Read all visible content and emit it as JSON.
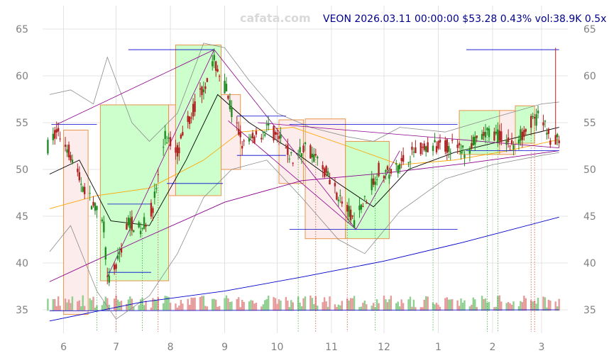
{
  "watermark": "cafata.com",
  "header": "VEON 2026.03.11 00:00:00 $53.28 0.43% vol:38.9K 0.5x",
  "chart_data": {
    "type": "candlestick",
    "title": "VEON 2026.03.11 00:00:00 $53.28 0.43% vol:38.9K 0.5x",
    "symbol": "VEON",
    "last_date": "2026-03-11",
    "last_price": 53.28,
    "change_pct": 0.43,
    "volume": "38.9K",
    "volume_ratio": "0.5x",
    "y_ticks": [
      35,
      40,
      45,
      50,
      55,
      60,
      65
    ],
    "ylim": [
      32.5,
      67.5
    ],
    "x_ticks": [
      {
        "label": "6",
        "x": "2025-06-01"
      },
      {
        "label": "7",
        "x": "2025-07-01"
      },
      {
        "label": "8",
        "x": "2025-08-01"
      },
      {
        "label": "9",
        "x": "2025-09-01"
      },
      {
        "label": "10",
        "x": "2025-10-01"
      },
      {
        "label": "11",
        "x": "2025-11-01"
      },
      {
        "label": "12",
        "x": "2025-12-01"
      },
      {
        "label": "1",
        "x": "2026-01-01"
      },
      {
        "label": "2",
        "x": "2026-02-01"
      },
      {
        "label": "3",
        "x": "2026-03-01"
      }
    ],
    "xlim": [
      "2025-05-20",
      "2026-03-16"
    ],
    "grid": true,
    "price_path": [
      [
        "2025-05-23",
        52.5
      ],
      [
        "2025-05-28",
        54.0
      ],
      [
        "2025-06-03",
        52.5
      ],
      [
        "2025-06-10",
        49.0
      ],
      [
        "2025-06-17",
        46.5
      ],
      [
        "2025-06-24",
        44.0
      ],
      [
        "2025-06-26",
        38.0
      ],
      [
        "2025-07-01",
        39.5
      ],
      [
        "2025-07-08",
        44.5
      ],
      [
        "2025-07-15",
        43.5
      ],
      [
        "2025-07-22",
        46.0
      ],
      [
        "2025-07-29",
        53.5
      ],
      [
        "2025-08-05",
        52.0
      ],
      [
        "2025-08-12",
        55.5
      ],
      [
        "2025-08-19",
        58.5
      ],
      [
        "2025-08-26",
        61.5
      ],
      [
        "2025-09-02",
        58.5
      ],
      [
        "2025-09-05",
        56.0
      ],
      [
        "2025-09-12",
        52.5
      ],
      [
        "2025-09-19",
        53.5
      ],
      [
        "2025-09-26",
        54.5
      ],
      [
        "2025-10-03",
        53.0
      ],
      [
        "2025-10-10",
        51.0
      ],
      [
        "2025-10-17",
        52.5
      ],
      [
        "2025-10-24",
        51.0
      ],
      [
        "2025-10-31",
        49.0
      ],
      [
        "2025-11-07",
        46.5
      ],
      [
        "2025-11-14",
        44.5
      ],
      [
        "2025-11-21",
        47.0
      ],
      [
        "2025-11-28",
        50.0
      ],
      [
        "2025-12-05",
        49.5
      ],
      [
        "2025-12-12",
        51.0
      ],
      [
        "2025-12-19",
        52.0
      ],
      [
        "2026-01-02",
        52.5
      ],
      [
        "2026-01-09",
        52.5
      ],
      [
        "2026-01-16",
        52.0
      ],
      [
        "2026-01-23",
        53.0
      ],
      [
        "2026-01-30",
        54.0
      ],
      [
        "2026-02-06",
        53.5
      ],
      [
        "2026-02-13",
        52.5
      ],
      [
        "2026-02-20",
        54.5
      ],
      [
        "2026-02-27",
        55.5
      ],
      [
        "2026-03-04",
        54.5
      ],
      [
        "2026-03-06",
        53.0
      ],
      [
        "2026-03-11",
        53.28
      ]
    ],
    "spike": {
      "x": "2026-03-09",
      "high": 63.0,
      "low": 53.0
    },
    "zones": [
      {
        "x0": "2025-06-01",
        "x1": "2025-06-15",
        "y0": 34.5,
        "y1": 54.2,
        "color": "red"
      },
      {
        "x0": "2025-06-22",
        "x1": "2025-07-31",
        "y0": 38.1,
        "y1": 56.9,
        "color": "green"
      },
      {
        "x0": "2025-07-31",
        "x1": "2025-08-04",
        "y0": 47.2,
        "y1": 56.9,
        "color": "red"
      },
      {
        "x0": "2025-08-04",
        "x1": "2025-08-30",
        "y0": 47.2,
        "y1": 63.3,
        "color": "green"
      },
      {
        "x0": "2025-08-30",
        "x1": "2025-09-10",
        "y0": 50.0,
        "y1": 58.0,
        "color": "red"
      },
      {
        "x0": "2025-10-02",
        "x1": "2025-10-16",
        "y0": 48.5,
        "y1": 55.3,
        "color": "red"
      },
      {
        "x0": "2025-10-17",
        "x1": "2025-11-09",
        "y0": 42.6,
        "y1": 55.4,
        "color": "red"
      },
      {
        "x0": "2025-11-09",
        "x1": "2025-12-04",
        "y0": 42.6,
        "y1": 53.0,
        "color": "green"
      },
      {
        "x0": "2026-01-13",
        "x1": "2026-02-05",
        "y0": 51.6,
        "y1": 56.3,
        "color": "green"
      },
      {
        "x0": "2026-02-05",
        "x1": "2026-02-14",
        "y0": 51.6,
        "y1": 56.3,
        "color": "red"
      },
      {
        "x0": "2026-02-14",
        "x1": "2026-02-25",
        "y0": 52.8,
        "y1": 56.8,
        "color": "green"
      }
    ],
    "levels": [
      {
        "x0": "2025-05-25",
        "x1": "2025-06-20",
        "y": 54.8
      },
      {
        "x0": "2025-07-08",
        "x1": "2025-08-26",
        "y": 62.8
      },
      {
        "x0": "2025-06-26",
        "x1": "2025-07-21",
        "y": 39.0
      },
      {
        "x0": "2025-06-26",
        "x1": "2025-07-21",
        "y": 46.3
      },
      {
        "x0": "2025-07-30",
        "x1": "2025-08-31",
        "y": 48.5
      },
      {
        "x0": "2025-09-08",
        "x1": "2025-10-06",
        "y": 55.7
      },
      {
        "x0": "2025-09-08",
        "x1": "2025-10-06",
        "y": 51.5
      },
      {
        "x0": "2025-10-08",
        "x1": "2026-01-12",
        "y": 54.8
      },
      {
        "x0": "2025-10-08",
        "x1": "2026-01-12",
        "y": 43.6
      },
      {
        "x0": "2026-01-17",
        "x1": "2026-03-11",
        "y": 62.8
      },
      {
        "x0": "2026-01-17",
        "x1": "2026-03-11",
        "y": 52.0
      }
    ],
    "trend_lines": [
      [
        [
          "2025-05-28",
          54.8
        ],
        [
          "2025-08-26",
          62.8
        ]
      ],
      [
        [
          "2025-06-26",
          38.5
        ],
        [
          "2025-08-26",
          62.8
        ]
      ],
      [
        [
          "2025-08-26",
          62.8
        ],
        [
          "2025-11-15",
          43.6
        ]
      ],
      [
        [
          "2025-09-03",
          55.2
        ],
        [
          "2025-11-15",
          43.6
        ]
      ],
      [
        [
          "2025-11-15",
          43.6
        ],
        [
          "2025-12-10",
          52.0
        ]
      ],
      [
        [
          "2025-09-20",
          55.0
        ],
        [
          "2026-03-11",
          52.3
        ]
      ]
    ],
    "ma_lines": [
      {
        "color": "#8b008b",
        "points": [
          [
            "2025-05-24",
            38.0
          ],
          [
            "2025-07-15",
            42.5
          ],
          [
            "2025-09-01",
            46.5
          ],
          [
            "2025-10-15",
            48.8
          ],
          [
            "2025-12-01",
            49.6
          ],
          [
            "2026-01-15",
            50.6
          ],
          [
            "2026-03-11",
            52.0
          ]
        ]
      },
      {
        "color": "#0000cd",
        "points": [
          [
            "2025-05-24",
            33.8
          ],
          [
            "2025-07-15",
            35.8
          ],
          [
            "2025-09-01",
            37.0
          ],
          [
            "2025-10-15",
            38.5
          ],
          [
            "2025-12-01",
            40.2
          ],
          [
            "2026-01-15",
            42.2
          ],
          [
            "2026-03-11",
            44.9
          ]
        ]
      },
      {
        "color": "#ffa500",
        "points": [
          [
            "2025-05-24",
            45.8
          ],
          [
            "2025-06-20",
            47.2
          ],
          [
            "2025-07-20",
            48.0
          ],
          [
            "2025-08-20",
            51.0
          ],
          [
            "2025-09-10",
            54.0
          ],
          [
            "2025-10-10",
            54.5
          ],
          [
            "2025-11-10",
            52.5
          ],
          [
            "2025-12-10",
            50.5
          ],
          [
            "2026-01-10",
            51.0
          ],
          [
            "2026-02-10",
            52.0
          ],
          [
            "2026-03-11",
            53.2
          ]
        ]
      },
      {
        "color": "#000000",
        "points": [
          [
            "2025-05-24",
            49.5
          ],
          [
            "2025-06-10",
            51.0
          ],
          [
            "2025-06-28",
            44.5
          ],
          [
            "2025-07-20",
            44.0
          ],
          [
            "2025-08-10",
            51.0
          ],
          [
            "2025-08-28",
            58.0
          ],
          [
            "2025-09-15",
            55.0
          ],
          [
            "2025-10-10",
            52.0
          ],
          [
            "2025-11-05",
            48.5
          ],
          [
            "2025-11-25",
            46.0
          ],
          [
            "2025-12-15",
            50.0
          ],
          [
            "2026-01-10",
            51.8
          ],
          [
            "2026-02-10",
            53.2
          ],
          [
            "2026-03-11",
            54.5
          ]
        ]
      }
    ],
    "bands": {
      "upper": [
        [
          "2025-05-24",
          58.0
        ],
        [
          "2025-06-05",
          58.5
        ],
        [
          "2025-06-18",
          57.0
        ],
        [
          "2025-06-26",
          62.0
        ],
        [
          "2025-07-10",
          55.0
        ],
        [
          "2025-07-20",
          53.0
        ],
        [
          "2025-08-05",
          56.0
        ],
        [
          "2025-08-20",
          63.5
        ],
        [
          "2025-09-01",
          63.0
        ],
        [
          "2025-09-15",
          59.5
        ],
        [
          "2025-10-01",
          56.0
        ],
        [
          "2025-10-20",
          54.5
        ],
        [
          "2025-11-10",
          53.5
        ],
        [
          "2025-11-25",
          53.0
        ],
        [
          "2025-12-10",
          54.5
        ],
        [
          "2026-01-05",
          54.0
        ],
        [
          "2026-02-01",
          55.5
        ],
        [
          "2026-03-01",
          57.0
        ],
        [
          "2026-03-11",
          57.2
        ]
      ],
      "lower": [
        [
          "2025-05-24",
          41.2
        ],
        [
          "2025-06-05",
          44.0
        ],
        [
          "2025-06-20",
          37.0
        ],
        [
          "2025-07-01",
          34.0
        ],
        [
          "2025-07-20",
          36.5
        ],
        [
          "2025-08-05",
          41.0
        ],
        [
          "2025-08-20",
          47.0
        ],
        [
          "2025-09-05",
          50.0
        ],
        [
          "2025-09-25",
          51.0
        ],
        [
          "2025-10-15",
          47.0
        ],
        [
          "2025-11-05",
          42.5
        ],
        [
          "2025-11-20",
          41.0
        ],
        [
          "2025-12-10",
          45.5
        ],
        [
          "2026-01-05",
          49.0
        ],
        [
          "2026-02-01",
          50.5
        ],
        [
          "2026-03-01",
          51.5
        ],
        [
          "2026-03-11",
          51.8
        ]
      ]
    },
    "volume_bars_max_units": 3.0,
    "volume_baseline": [
      [
        "2025-05-24",
        34.9
      ],
      [
        "2026-03-11",
        35.0
      ]
    ]
  }
}
